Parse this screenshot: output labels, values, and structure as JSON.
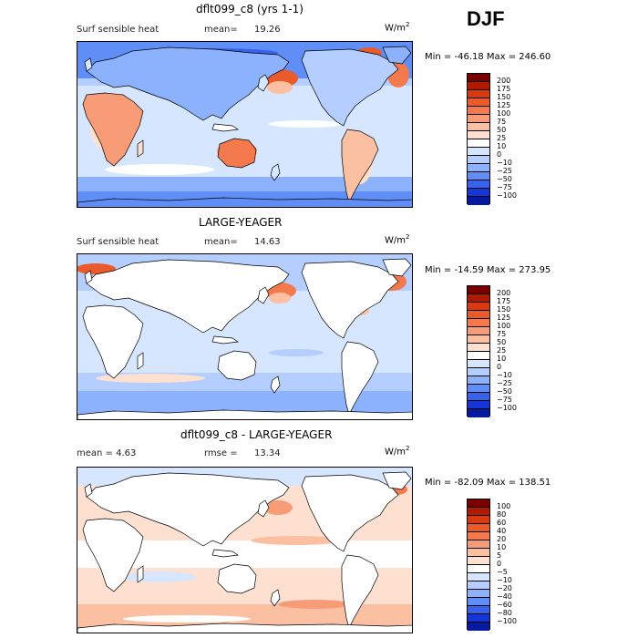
{
  "season": "DJF",
  "colors": {
    "land": "#ffffff",
    "coast": "#000000"
  },
  "panels": [
    {
      "title": "dflt099_c8 (yrs 1-1)",
      "left_label": "Surf sensible heat",
      "stat_label": "mean=",
      "stat_value": "19.26",
      "unit": "W/m",
      "unit_exp": "2",
      "minmax": "Min = -46.18  Max = 246.60",
      "colorbar": {
        "labels": [
          "200",
          "175",
          "150",
          "125",
          "100",
          "75",
          "50",
          "25",
          "10",
          "0",
          "−10",
          "−25",
          "−50",
          "−75",
          "−100"
        ],
        "colors": [
          "#7a0000",
          "#b21a00",
          "#d73a10",
          "#ea5a2a",
          "#f47a4e",
          "#f89c78",
          "#fbbfa2",
          "#fde0cf",
          "#ffffff",
          "#d6e6ff",
          "#b4ceff",
          "#8cb2fd",
          "#5f8ef7",
          "#3762ec",
          "#1536d6",
          "#061aa0"
        ]
      }
    },
    {
      "title": "LARGE-YEAGER",
      "left_label": "Surf sensible heat",
      "stat_label": "mean=",
      "stat_value": "14.63",
      "unit": "W/m",
      "unit_exp": "2",
      "minmax": "Min = -14.59  Max = 273.95",
      "colorbar": {
        "labels": [
          "200",
          "175",
          "150",
          "125",
          "100",
          "75",
          "50",
          "25",
          "10",
          "0",
          "−10",
          "−25",
          "−50",
          "−75",
          "−100"
        ],
        "colors": [
          "#7a0000",
          "#b21a00",
          "#d73a10",
          "#ea5a2a",
          "#f47a4e",
          "#f89c78",
          "#fbbfa2",
          "#fde0cf",
          "#ffffff",
          "#d6e6ff",
          "#b4ceff",
          "#8cb2fd",
          "#5f8ef7",
          "#3762ec",
          "#1536d6",
          "#061aa0"
        ]
      }
    },
    {
      "title": "dflt099_c8 - LARGE-YEAGER",
      "left_label": "mean =   4.63",
      "stat_label": "rmse =",
      "stat_value": "13.34",
      "unit": "W/m",
      "unit_exp": "2",
      "minmax": "Min = -82.09  Max = 138.51",
      "colorbar": {
        "labels": [
          "100",
          "80",
          "60",
          "40",
          "20",
          "10",
          "5",
          "0",
          "−5",
          "−10",
          "−20",
          "−40",
          "−60",
          "−80",
          "−100"
        ],
        "colors": [
          "#7a0000",
          "#b21a00",
          "#d73a10",
          "#ea5a2a",
          "#f47a4e",
          "#f89c78",
          "#fbbfa2",
          "#fde0cf",
          "#ffffff",
          "#d6e6ff",
          "#b4ceff",
          "#8cb2fd",
          "#5f8ef7",
          "#3762ec",
          "#1536d6",
          "#061aa0"
        ]
      }
    }
  ],
  "chart_data": {
    "type": "heatmap",
    "title": "DJF",
    "maps": [
      {
        "title": "dflt099_c8 (yrs 1-1)",
        "variable": "Surf sensible heat",
        "mean": 19.26,
        "min": -46.18,
        "max": 246.6,
        "contour_levels": [
          -100,
          -75,
          -50,
          -25,
          -10,
          0,
          10,
          25,
          50,
          75,
          100,
          125,
          150,
          175,
          200
        ]
      },
      {
        "title": "LARGE-YEAGER",
        "variable": "Surf sensible heat",
        "mean": 14.63,
        "min": -14.59,
        "max": 273.95,
        "contour_levels": [
          -100,
          -75,
          -50,
          -25,
          -10,
          0,
          10,
          25,
          50,
          75,
          100,
          125,
          150,
          175,
          200
        ]
      },
      {
        "title": "dflt099_c8 - LARGE-YEAGER",
        "mean": 4.63,
        "rmse": 13.34,
        "min": -82.09,
        "max": 138.51,
        "contour_levels": [
          -100,
          -80,
          -60,
          -40,
          -20,
          -10,
          -5,
          0,
          5,
          10,
          20,
          40,
          60,
          80,
          100
        ]
      }
    ]
  }
}
